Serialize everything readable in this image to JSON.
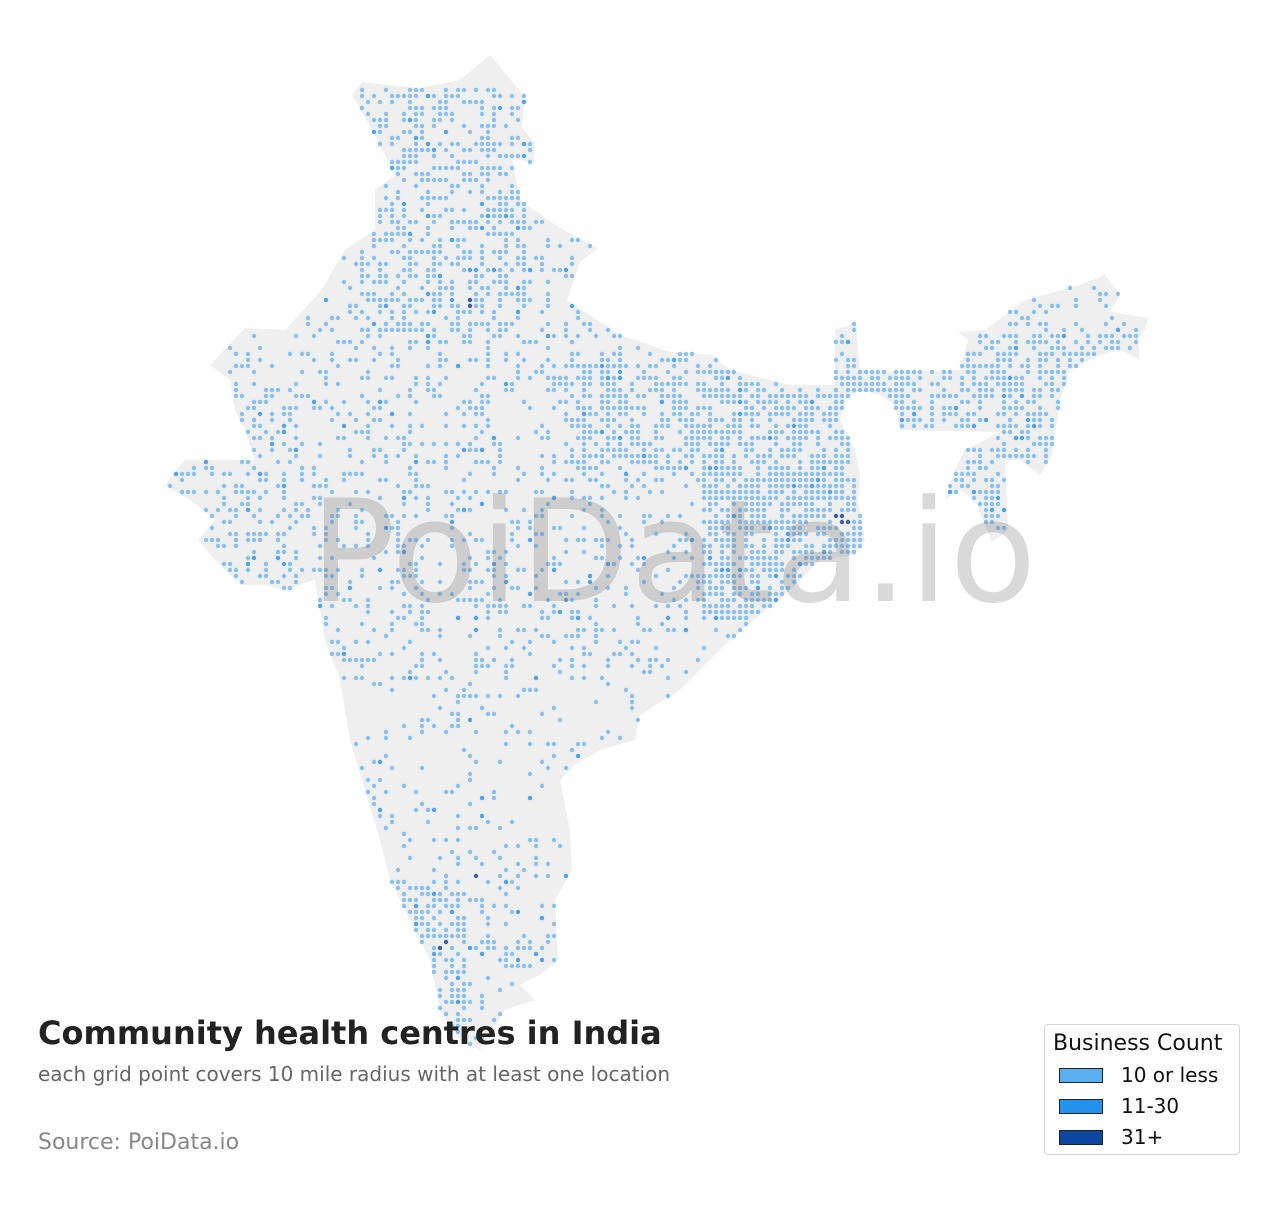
{
  "title": "Community health centres in India",
  "subtitle": "each grid point covers 10 mile radius with at least one location",
  "source": "Source: PoiData.io",
  "watermark": "PoiData.io",
  "legend": {
    "title": "Business Count",
    "items": [
      {
        "label": "10 or less",
        "color": "#5aaff0"
      },
      {
        "label": "11-30",
        "color": "#2292ec"
      },
      {
        "label": "31+",
        "color": "#0b47a0"
      }
    ]
  },
  "colors": {
    "land": "#efefef",
    "dot_low": "#86c1f4",
    "dot_mid": "#4aa3ee",
    "dot_high": "#3d5f9e"
  }
}
